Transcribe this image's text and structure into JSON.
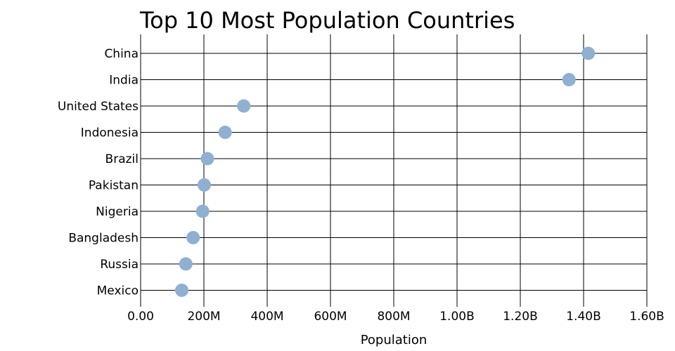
{
  "chart_data": {
    "type": "scatter",
    "title": "Top 10 Most Population Countries",
    "xlabel": "Population",
    "ylabel": "",
    "categories": [
      "China",
      "India",
      "United States",
      "Indonesia",
      "Brazil",
      "Pakistan",
      "Nigeria",
      "Bangladesh",
      "Russia",
      "Mexico"
    ],
    "values": [
      1415000000,
      1354000000,
      326000000,
      267000000,
      211000000,
      201000000,
      196000000,
      166000000,
      143000000,
      130000000
    ],
    "xlim": [
      0,
      1600000000
    ],
    "xticks": [
      0,
      200000000,
      400000000,
      600000000,
      800000000,
      1000000000,
      1200000000,
      1400000000,
      1600000000
    ],
    "xtick_labels": [
      "0.00",
      "200M",
      "400M",
      "600M",
      "800M",
      "1.00B",
      "1.20B",
      "1.40B",
      "1.60B"
    ],
    "grid": true,
    "marker_color": "#8fb0d1"
  }
}
